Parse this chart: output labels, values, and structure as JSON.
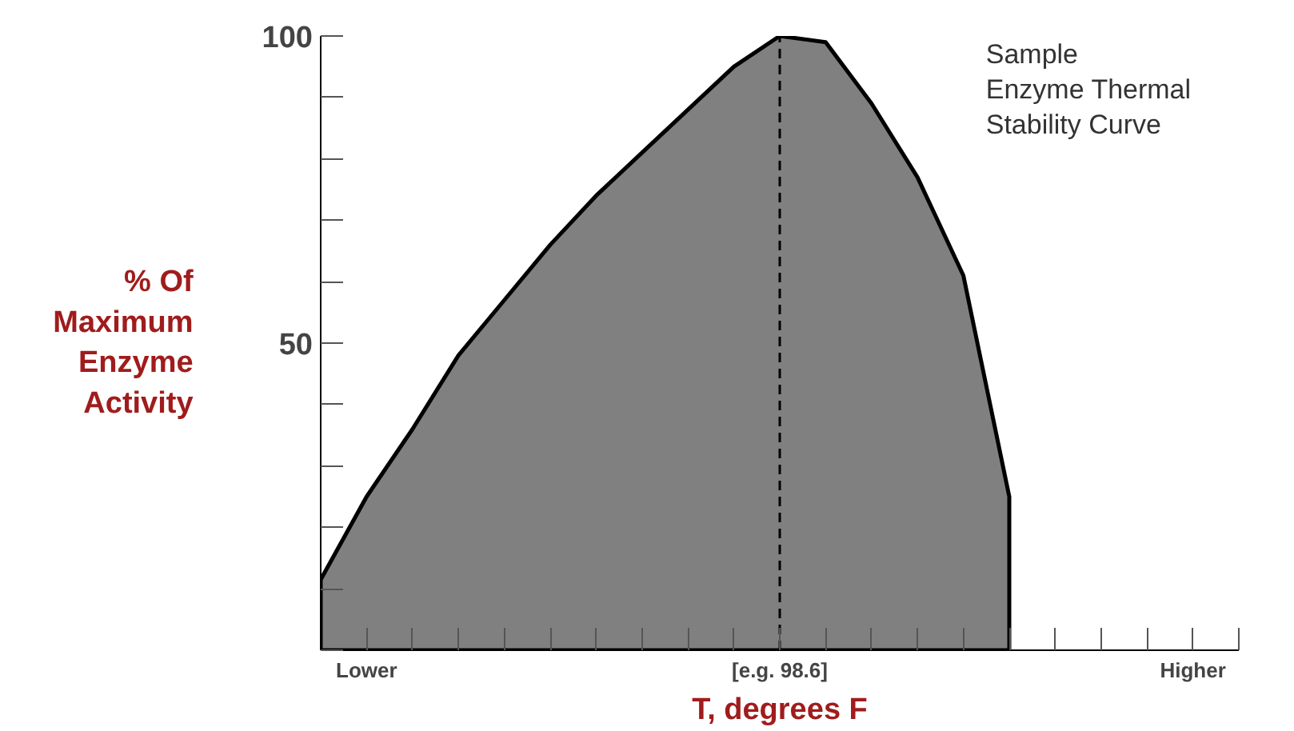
{
  "chart_data": {
    "type": "area",
    "title": "Sample\nEnzyme Thermal\nStability Curve",
    "xlabel": "T, degrees F",
    "ylabel": "% Of Maximum Enzyme Activity",
    "categories": [
      null,
      "Lower",
      null,
      null,
      null,
      null,
      null,
      null,
      null,
      null,
      "[e.g. 98.6]",
      null,
      null,
      null,
      null,
      null,
      null,
      null,
      null,
      "Higher",
      null
    ],
    "series": [
      {
        "color": "#808080",
        "values": [
          11.5,
          25,
          36,
          48,
          57,
          66,
          74,
          81,
          88,
          95,
          100,
          99,
          89,
          77,
          61,
          25,
          null,
          null,
          null,
          null,
          null
        ]
      }
    ],
    "ylim": [
      0,
      100
    ],
    "yticks": [
      {
        "value": 0,
        "label": null
      },
      {
        "value": 10,
        "label": null
      },
      {
        "value": 20,
        "label": null
      },
      {
        "value": 30,
        "label": null
      },
      {
        "value": 40,
        "label": null
      },
      50,
      {
        "value": 60,
        "label": null
      },
      {
        "value": 70,
        "label": null
      },
      {
        "value": 80,
        "label": null
      },
      {
        "value": 90,
        "label": null
      },
      100
    ],
    "ref_lines": [
      {
        "axis": "x",
        "value": "[e.g. 98.6]",
        "label": null,
        "color": "#000000",
        "line_style": "dashed"
      }
    ],
    "grid": false
  }
}
